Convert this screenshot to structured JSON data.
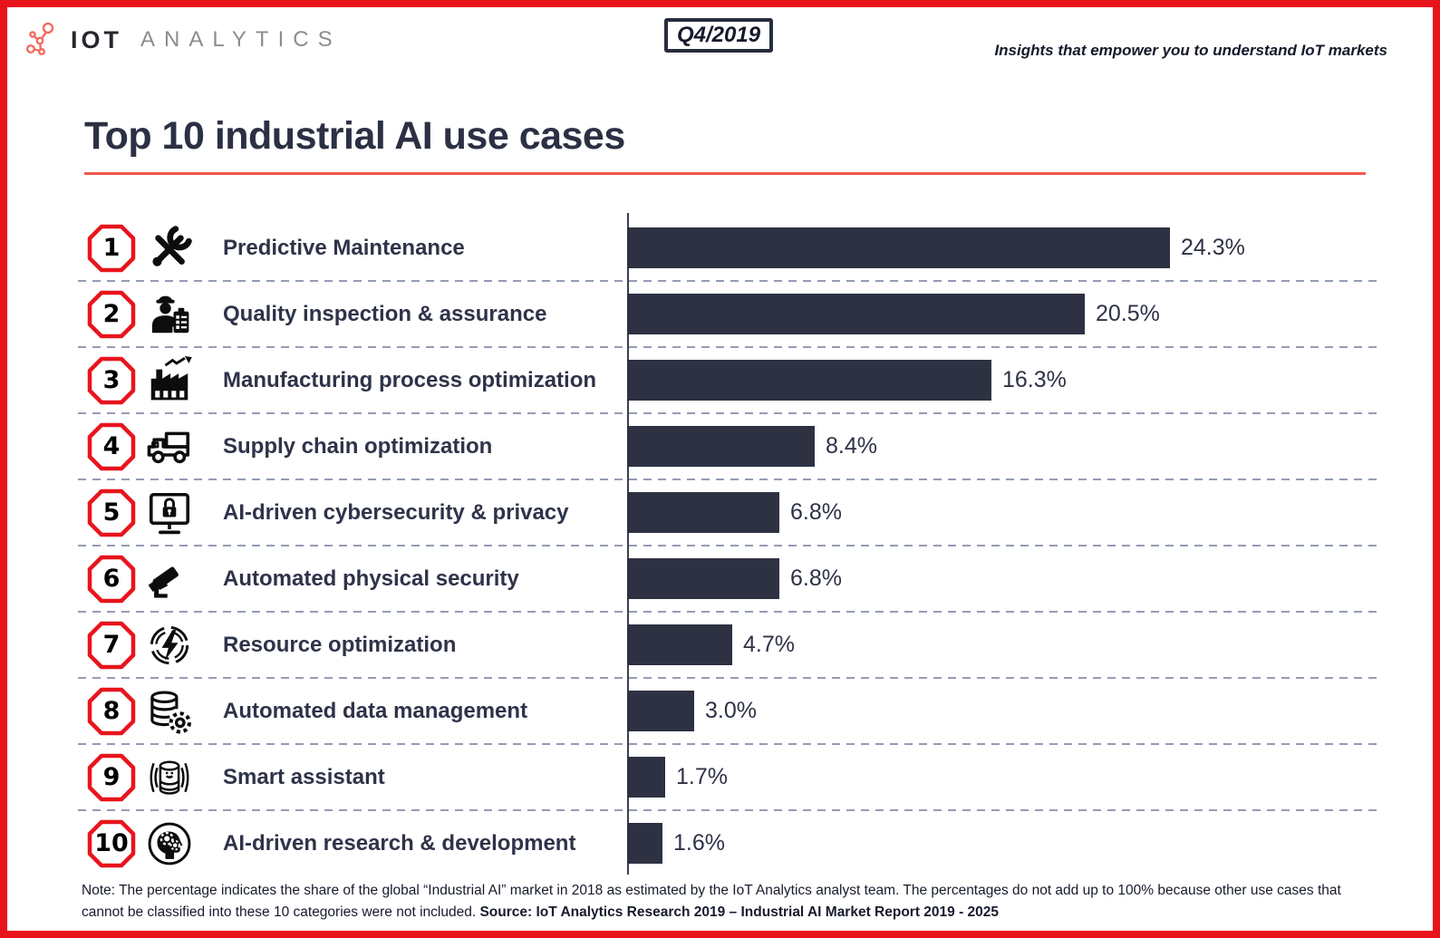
{
  "header": {
    "logo": {
      "icon": "network-nodes-icon",
      "brand_primary": "IOT",
      "brand_secondary": "ANALYTICS"
    },
    "period_badge": "Q4/2019",
    "tagline": "Insights that empower you to understand IoT markets"
  },
  "title": "Top 10 industrial AI use cases",
  "chart_data": {
    "type": "bar",
    "orientation": "horizontal",
    "unit": "percent",
    "xlim": [
      0,
      25
    ],
    "max_value": 24.3,
    "grid": "dashed row separators",
    "value_labels_position": "end of bar",
    "rows": [
      {
        "rank": "1",
        "label": "Predictive Maintenance",
        "icon": "tools-icon",
        "value": 24.3,
        "value_label": "24.3%"
      },
      {
        "rank": "2",
        "label": "Quality inspection & assurance",
        "icon": "quality-inspector-icon",
        "value": 20.5,
        "value_label": "20.5%"
      },
      {
        "rank": "3",
        "label": "Manufacturing process optimization",
        "icon": "factory-icon",
        "value": 16.3,
        "value_label": "16.3%"
      },
      {
        "rank": "4",
        "label": "Supply chain optimization",
        "icon": "truck-icon",
        "value": 8.4,
        "value_label": "8.4%"
      },
      {
        "rank": "5",
        "label": "AI-driven cybersecurity & privacy",
        "icon": "monitor-lock-icon",
        "value": 6.8,
        "value_label": "6.8%"
      },
      {
        "rank": "6",
        "label": "Automated physical security",
        "icon": "cctv-camera-icon",
        "value": 6.8,
        "value_label": "6.8%"
      },
      {
        "rank": "7",
        "label": "Resource optimization",
        "icon": "energy-bolt-icon",
        "value": 4.7,
        "value_label": "4.7%"
      },
      {
        "rank": "8",
        "label": "Automated data management",
        "icon": "database-gear-icon",
        "value": 3.0,
        "value_label": "3.0%"
      },
      {
        "rank": "9",
        "label": "Smart assistant",
        "icon": "smart-speaker-icon",
        "value": 1.7,
        "value_label": "1.7%"
      },
      {
        "rank": "10",
        "label": "AI-driven research & development",
        "icon": "head-gears-icon",
        "value": 1.6,
        "value_label": "1.6%"
      }
    ]
  },
  "footer": {
    "note": "Note: The percentage indicates the share of the global “Industrial AI” market in 2018 as estimated by the IoT Analytics analyst team. The percentages do not add up to 100% because other use cases that cannot be classified into these 10 categories were not included. ",
    "source": "Source: IoT Analytics Research 2019 – Industrial AI Market Report 2019 - 2025"
  },
  "colors": {
    "accent_red": "#e8141c",
    "underline_coral": "#f4564c",
    "bar_navy": "#2d3142",
    "logo_coral": "#f26b61",
    "separator": "#949cb5"
  }
}
